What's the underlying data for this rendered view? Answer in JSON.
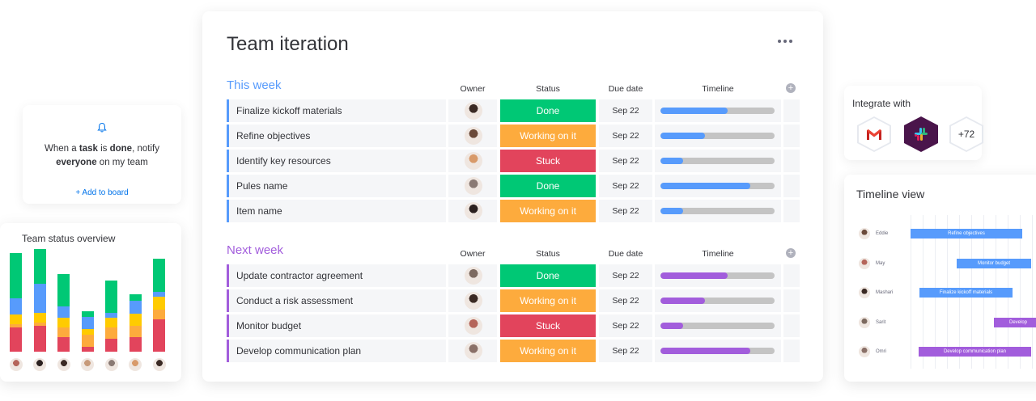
{
  "colors": {
    "blue": "#579bfc",
    "purple": "#a25ddc",
    "done": "#00c875",
    "working": "#fdab3d",
    "stuck": "#e2445c",
    "accent_link": "#0073ea"
  },
  "board": {
    "title": "Team iteration",
    "menu_icon": "more-horizontal-icon",
    "columns": {
      "owner": "Owner",
      "status": "Status",
      "due": "Due date",
      "timeline": "Timeline"
    },
    "groups": [
      {
        "title": "This week",
        "color": "#579bfc",
        "items": [
          {
            "name": "Finalize kickoff materials",
            "status": "Done",
            "status_color": "#00c875",
            "due": "Sep 22",
            "progress": 0.59,
            "avatar_color": "#3b2a24"
          },
          {
            "name": "Refine objectives",
            "status": "Working on it",
            "status_color": "#fdab3d",
            "due": "Sep 22",
            "progress": 0.39,
            "avatar_color": "#6b4a3a"
          },
          {
            "name": "Identify key resources",
            "status": "Stuck",
            "status_color": "#e2445c",
            "due": "Sep 22",
            "progress": 0.2,
            "avatar_color": "#d89a6a"
          },
          {
            "name": "Pules name",
            "status": "Done",
            "status_color": "#00c875",
            "due": "Sep 22",
            "progress": 0.79,
            "avatar_color": "#8a7a74"
          },
          {
            "name": "Item name",
            "status": "Working on it",
            "status_color": "#fdab3d",
            "due": "Sep 22",
            "progress": 0.2,
            "avatar_color": "#2c2120"
          }
        ]
      },
      {
        "title": "Next week",
        "color": "#a25ddc",
        "items": [
          {
            "name": "Update contractor agreement",
            "status": "Done",
            "status_color": "#00c875",
            "due": "Sep 22",
            "progress": 0.59,
            "avatar_color": "#7d6a60"
          },
          {
            "name": "Conduct a risk assessment",
            "status": "Working on it",
            "status_color": "#fdab3d",
            "due": "Sep 22",
            "progress": 0.39,
            "avatar_color": "#3b2a24"
          },
          {
            "name": "Monitor budget",
            "status": "Stuck",
            "status_color": "#e2445c",
            "due": "Sep 22",
            "progress": 0.2,
            "avatar_color": "#b5655a"
          },
          {
            "name": "Develop communication plan",
            "status": "Working on it",
            "status_color": "#fdab3d",
            "due": "Sep 22",
            "progress": 0.79,
            "avatar_color": "#8a7068"
          }
        ]
      }
    ]
  },
  "notify": {
    "icon": "bell-icon",
    "text_1": "When a ",
    "task": "task",
    "text_2": " is ",
    "done": "done",
    "text_3": ", notify",
    "everyone": "everyone",
    "text_4": " on my team",
    "link": "+ Add to board"
  },
  "overview": {
    "title": "Team status overview",
    "series_colors": [
      "#e2445c",
      "#fdab3d",
      "#ffcb00",
      "#579bfc",
      "#00c875"
    ],
    "bars": [
      [
        30,
        4,
        12,
        20,
        56
      ],
      [
        32,
        4,
        12,
        36,
        43
      ],
      [
        18,
        12,
        12,
        14,
        40
      ],
      [
        6,
        15,
        7,
        15,
        7
      ],
      [
        16,
        14,
        12,
        6,
        40
      ],
      [
        18,
        14,
        15,
        16,
        8
      ],
      [
        40,
        12,
        16,
        6,
        41
      ]
    ],
    "avatar_colors": [
      "#b5655a",
      "#2c2120",
      "#3b2a24",
      "#c79a7a",
      "#8a7a74",
      "#d89a6a",
      "#3b2a24"
    ]
  },
  "integrate": {
    "title": "Integrate with",
    "apps": [
      {
        "icon": "gmail-icon",
        "label": "M"
      },
      {
        "icon": "slack-icon",
        "label": ""
      },
      {
        "icon": "more-apps-badge",
        "label": "+72"
      }
    ]
  },
  "timeline_view": {
    "title": "Timeline view",
    "rows": [
      {
        "person": "Eddie",
        "task": "Refine objectives",
        "avatar_color": "#6b4a3a"
      },
      {
        "person": "May",
        "task": "Monitor budget",
        "avatar_color": "#b5655a"
      },
      {
        "person": "Mashari",
        "task": "Finalize kickoff materials",
        "avatar_color": "#3b2a24"
      },
      {
        "person": "Sarit",
        "task": "Develop",
        "avatar_color": "#7d6a60"
      },
      {
        "person": "Omri",
        "task": "Develop communication plan",
        "avatar_color": "#8a7068"
      }
    ]
  }
}
